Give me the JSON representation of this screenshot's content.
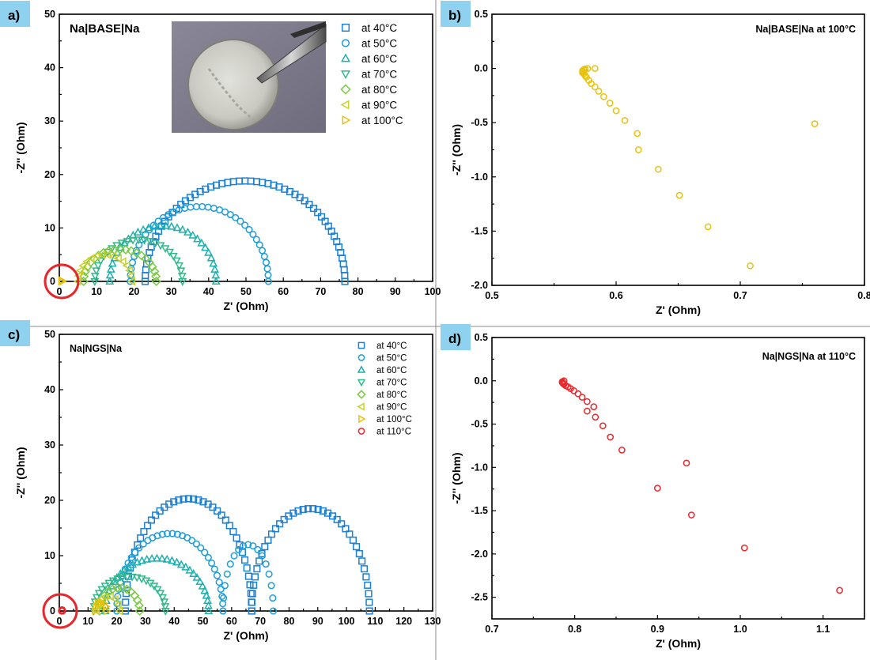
{
  "figure": {
    "photo_alt": "photograph of sodium electrode disk held by tweezers"
  },
  "colors": {
    "at 40°C": "#1c7fcf",
    "at 50°C": "#1d9ed8",
    "at 60°C": "#1cb0ae",
    "at 70°C": "#2fb98a",
    "at 80°C": "#7ac943",
    "at 90°C": "#c8d22a",
    "at 100°C": "#e8c20b",
    "at 110°C": "#e8272d",
    "highlight_circle": "#e8272d",
    "panel_label_bg": "#8ed2f0"
  },
  "chart_data": [
    {
      "panel_label": "a)",
      "type": "scatter",
      "title": "Na|BASE|Na",
      "xlabel": "Z' (Ohm)",
      "ylabel": "-Z'' (Ohm)",
      "xlim": [
        0,
        100
      ],
      "ylim": [
        0,
        50
      ],
      "xticks": [
        "0",
        "10",
        "20",
        "30",
        "40",
        "50",
        "60",
        "70",
        "80",
        "90",
        "100"
      ],
      "yticks": [
        "0",
        "10",
        "20",
        "30",
        "40",
        "50"
      ],
      "legend_position": "top-right",
      "series": [
        {
          "name": "at 40°C",
          "marker": "square",
          "arcs": [
            [
              23,
              76.5,
              18.8
            ]
          ]
        },
        {
          "name": "at 50°C",
          "marker": "circle",
          "arcs": [
            [
              19,
              56,
              14
            ]
          ]
        },
        {
          "name": "at 60°C",
          "marker": "triangle-up",
          "arcs": [
            [
              13.5,
              42,
              10.4
            ]
          ]
        },
        {
          "name": "at 70°C",
          "marker": "triangle-down",
          "arcs": [
            [
              9.5,
              33,
              7.8
            ]
          ]
        },
        {
          "name": "at 80°C",
          "marker": "diamond",
          "arcs": [
            [
              6.5,
              26,
              6.0
            ]
          ]
        },
        {
          "name": "at 90°C",
          "marker": "triangle-left",
          "arcs": [
            [
              5,
              19.5,
              5.0
            ]
          ]
        },
        {
          "name": "at 100°C",
          "marker": "triangle-right",
          "arcs": [
            [
              0.58,
              0.75,
              0.15
            ]
          ]
        }
      ]
    },
    {
      "panel_label": "b)",
      "type": "scatter",
      "title": "Na|BASE|Na at 100°C",
      "xlabel": "Z' (Ohm)",
      "ylabel": "-Z'' (Ohm)",
      "xlim": [
        0.5,
        0.8
      ],
      "ylim": [
        -2.0,
        0.5
      ],
      "xticks": [
        "0.5",
        "0.6",
        "0.7",
        "0.8"
      ],
      "yticks": [
        "-2.0",
        "-1.5",
        "-1.0",
        "-0.5",
        "0.0",
        "0.5"
      ],
      "series": [
        {
          "name": "at 100°C",
          "marker": "circle",
          "points": [
            [
              0.583,
              0.0
            ],
            [
              0.577,
              0.0
            ],
            [
              0.575,
              -0.005
            ],
            [
              0.574,
              -0.01
            ],
            [
              0.573,
              -0.02
            ],
            [
              0.573,
              -0.03
            ],
            [
              0.573,
              -0.04
            ],
            [
              0.574,
              -0.05
            ],
            [
              0.575,
              -0.065
            ],
            [
              0.576,
              -0.08
            ],
            [
              0.578,
              -0.11
            ],
            [
              0.58,
              -0.14
            ],
            [
              0.583,
              -0.17
            ],
            [
              0.586,
              -0.21
            ],
            [
              0.59,
              -0.26
            ],
            [
              0.595,
              -0.32
            ],
            [
              0.6,
              -0.39
            ],
            [
              0.607,
              -0.48
            ],
            [
              0.617,
              -0.6
            ],
            [
              0.618,
              -0.75
            ],
            [
              0.634,
              -0.93
            ],
            [
              0.651,
              -1.17
            ],
            [
              0.674,
              -1.46
            ],
            [
              0.708,
              -1.82
            ],
            [
              0.76,
              -0.51
            ]
          ]
        }
      ]
    },
    {
      "panel_label": "c)",
      "type": "scatter",
      "title": "Na|NGS|Na",
      "xlabel": "Z' (Ohm)",
      "ylabel": "-Z'' (Ohm)",
      "xlim": [
        0,
        130
      ],
      "ylim": [
        0,
        50
      ],
      "xticks": [
        "0",
        "10",
        "20",
        "30",
        "40",
        "50",
        "60",
        "70",
        "80",
        "90",
        "100",
        "110",
        "120",
        "130"
      ],
      "yticks": [
        "0",
        "10",
        "20",
        "30",
        "40",
        "50"
      ],
      "legend_position": "top-right",
      "series": [
        {
          "name": "at 40°C",
          "marker": "square",
          "arcs": [
            [
              23,
              67,
              20.3
            ],
            [
              67,
              108,
              18.5
            ]
          ]
        },
        {
          "name": "at 50°C",
          "marker": "circle",
          "arcs": [
            [
              20,
              57,
              14.0
            ],
            [
              57,
              74.5,
              12.0
            ]
          ]
        },
        {
          "name": "at 60°C",
          "marker": "triangle-up",
          "arcs": [
            [
              16,
              52,
              9.5
            ]
          ]
        },
        {
          "name": "at 70°C",
          "marker": "triangle-down",
          "arcs": [
            [
              12,
              37,
              6.2
            ]
          ]
        },
        {
          "name": "at 80°C",
          "marker": "diamond",
          "arcs": [
            [
              14,
              28,
              4.2
            ]
          ]
        },
        {
          "name": "at 90°C",
          "marker": "triangle-left",
          "arcs": [
            [
              13,
              21,
              2.7
            ]
          ]
        },
        {
          "name": "at 100°C",
          "marker": "triangle-right",
          "arcs": [
            [
              12.5,
              16.5,
              1.6
            ]
          ]
        },
        {
          "name": "at 110°C",
          "marker": "circle",
          "arcs": [
            [
              0.78,
              1.12,
              0.2
            ]
          ]
        }
      ]
    },
    {
      "panel_label": "d)",
      "type": "scatter",
      "title": "Na|NGS|Na at 110°C",
      "xlabel": "Z' (Ohm)",
      "ylabel": "-Z'' (Ohm)",
      "xlim": [
        0.7,
        1.15
      ],
      "ylim": [
        -2.75,
        0.5
      ],
      "xticks": [
        "0.7",
        "0.8",
        "0.9",
        "1.0",
        "1.1"
      ],
      "yticks": [
        "-2.5",
        "-2.0",
        "-1.5",
        "-1.0",
        "-0.5",
        "0.0",
        "0.5"
      ],
      "series": [
        {
          "name": "at 110°C",
          "marker": "circle",
          "points": [
            [
              0.787,
              0.0
            ],
            [
              0.785,
              -0.01
            ],
            [
              0.785,
              -0.02
            ],
            [
              0.786,
              -0.03
            ],
            [
              0.787,
              -0.04
            ],
            [
              0.789,
              -0.055
            ],
            [
              0.792,
              -0.07
            ],
            [
              0.795,
              -0.09
            ],
            [
              0.799,
              -0.115
            ],
            [
              0.804,
              -0.15
            ],
            [
              0.809,
              -0.19
            ],
            [
              0.815,
              -0.24
            ],
            [
              0.823,
              -0.3
            ],
            [
              0.815,
              -0.35
            ],
            [
              0.825,
              -0.42
            ],
            [
              0.834,
              -0.52
            ],
            [
              0.843,
              -0.65
            ],
            [
              0.857,
              -0.8
            ],
            [
              0.9,
              -1.24
            ],
            [
              0.935,
              -0.95
            ],
            [
              0.941,
              -1.55
            ],
            [
              1.005,
              -1.93
            ],
            [
              1.12,
              -2.42
            ]
          ]
        }
      ]
    }
  ]
}
